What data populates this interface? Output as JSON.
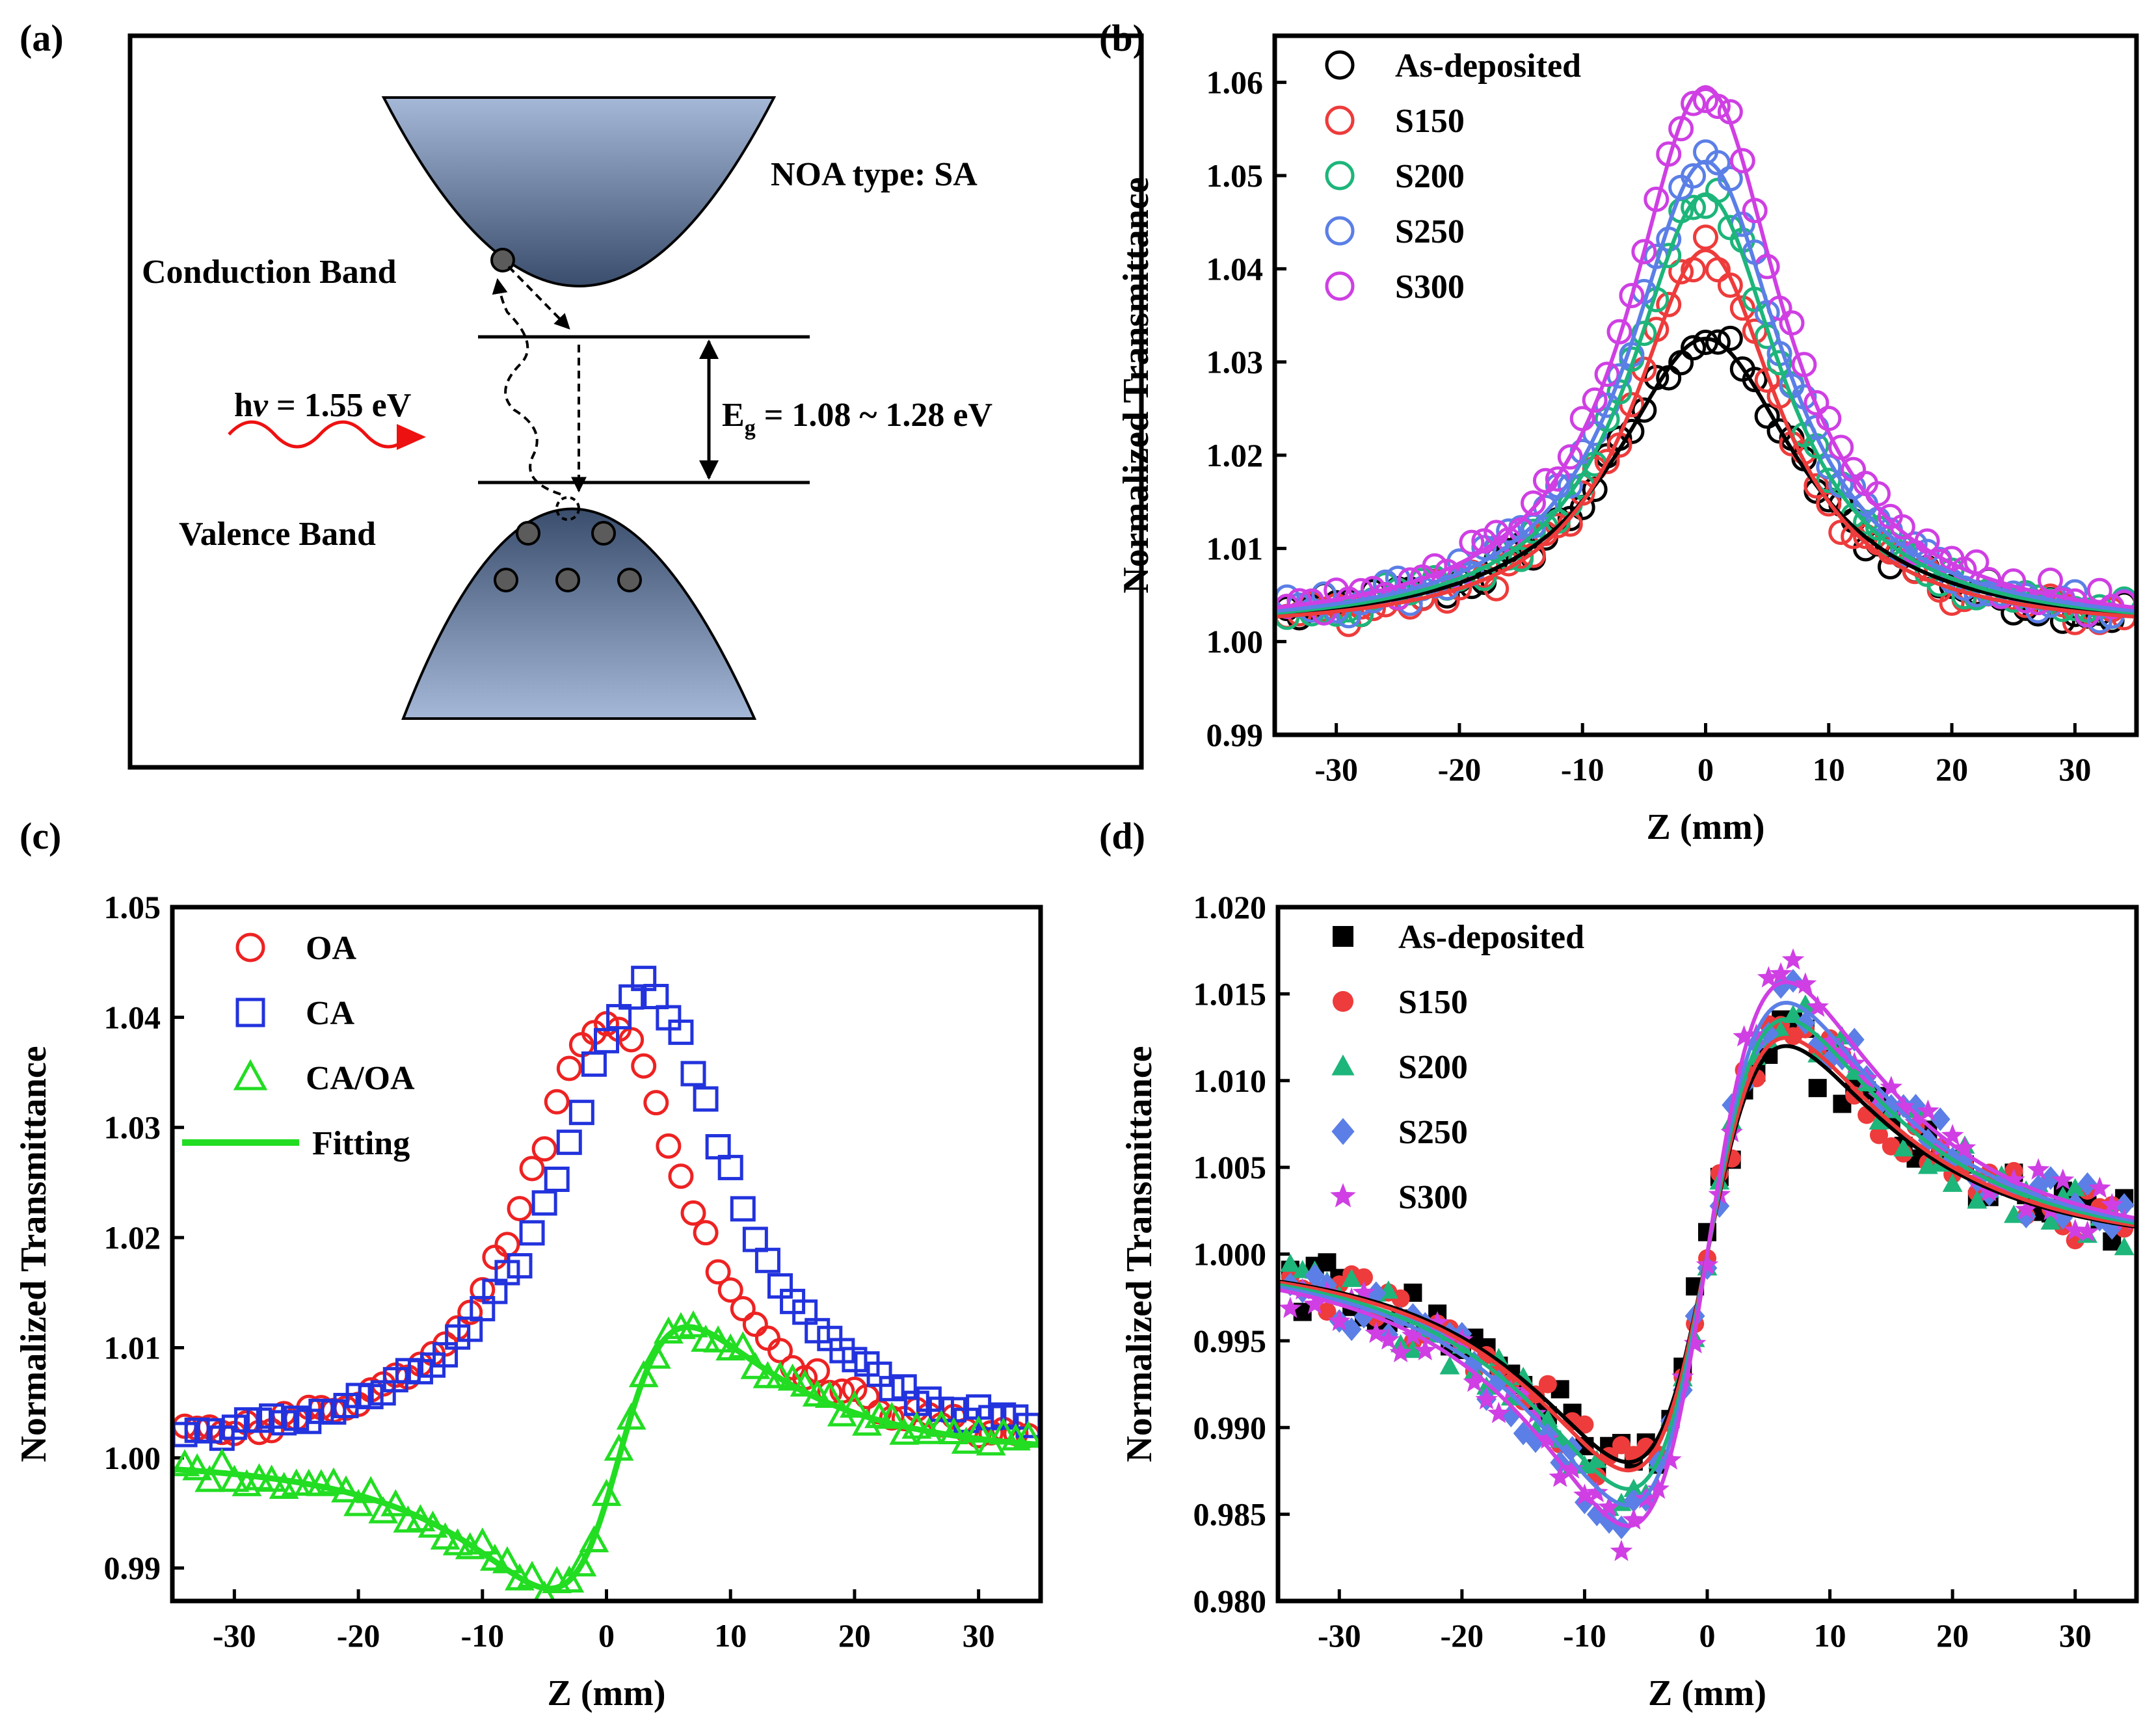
{
  "panel_labels": {
    "a": "(a)",
    "b": "(b)",
    "c": "(c)",
    "d": "(d)"
  },
  "diagram": {
    "noa_type": "NOA type: SA",
    "conduction_band": "Conduction Band",
    "valence_band": "Valence Band",
    "photon_prefix": "h",
    "photon_nu": "ν",
    "photon_suffix": " = 1.55 eV",
    "eg_symbol": "E",
    "eg_sub": "g",
    "eg_value": " = 1.08 ~ 1.28 eV",
    "colors": {
      "band_dark": "#3a4d6c",
      "band_light": "#a5b8d8",
      "photon": "#ee1111"
    }
  },
  "chart_data": [
    {
      "id": "b",
      "type": "scatter",
      "title": "",
      "xlabel": "Z (mm)",
      "ylabel": "Normalized Transmittance",
      "xlim": [
        -35,
        35
      ],
      "ylim": [
        0.99,
        1.065
      ],
      "xticks": [
        -30,
        -20,
        -10,
        0,
        10,
        20,
        30
      ],
      "yticks": [
        0.99,
        1.0,
        1.01,
        1.02,
        1.03,
        1.04,
        1.05,
        1.06
      ],
      "ytick_labels": [
        "0.99",
        "1.00",
        "1.01",
        "1.02",
        "1.03",
        "1.04",
        "1.05",
        "1.06"
      ],
      "legend_position": "top-left",
      "series": [
        {
          "name": "As-deposited",
          "color": "#000000",
          "marker": "circle",
          "fit": "lorentz",
          "peak": 0.0315,
          "w": 9,
          "base": 0.001
        },
        {
          "name": "S150",
          "color": "#ee3b3b",
          "marker": "circle",
          "fit": "lorentz",
          "peak": 0.041,
          "w": 7.2,
          "base": 0.001
        },
        {
          "name": "S200",
          "color": "#1db57a",
          "marker": "circle",
          "fit": "lorentz",
          "peak": 0.047,
          "w": 7.5,
          "base": 0.001
        },
        {
          "name": "S250",
          "color": "#5b7fe6",
          "marker": "circle",
          "fit": "lorentz",
          "peak": 0.0505,
          "w": 7.6,
          "base": 0.001
        },
        {
          "name": "S300",
          "color": "#cf3fe3",
          "marker": "circle",
          "fit": "lorentz",
          "peak": 0.0585,
          "w": 7.6,
          "base": 0.001
        }
      ]
    },
    {
      "id": "c",
      "type": "scatter",
      "title": "",
      "xlabel": "Z (mm)",
      "ylabel": "Normalized Transmittance",
      "xlim": [
        -35,
        35
      ],
      "ylim": [
        0.987,
        1.05
      ],
      "xticks": [
        -30,
        -20,
        -10,
        0,
        10,
        20,
        30
      ],
      "yticks": [
        0.99,
        1.0,
        1.01,
        1.02,
        1.03,
        1.04,
        1.05
      ],
      "ytick_labels": [
        "0.99",
        "1.00",
        "1.01",
        "1.02",
        "1.03",
        "1.04",
        "1.05"
      ],
      "legend_position": "top-left",
      "series": [
        {
          "name": "OA",
          "color": "#ee2222",
          "marker": "circle",
          "fit": "none",
          "shape": "lorentz",
          "peak": 0.04,
          "center": 0,
          "w": 8,
          "base": 0.0
        },
        {
          "name": "CA",
          "color": "#2233dd",
          "marker": "square",
          "fit": "none",
          "shape": "lorentz",
          "peak": 0.043,
          "center": 3,
          "w": 8.5,
          "base": 0.0
        },
        {
          "name": "CA/OA",
          "color": "#22dd22",
          "marker": "triangle",
          "fit": "none",
          "shape": "dispersion",
          "amp": 0.01,
          "center": 1,
          "w": 6.5,
          "base": 1.0
        },
        {
          "name": "Fitting",
          "color": "#22dd22",
          "marker": "line",
          "fit": "dispersion",
          "amp": 0.01,
          "center": 1,
          "w": 6.5,
          "base": 1.0
        }
      ]
    },
    {
      "id": "d",
      "type": "scatter",
      "title": "",
      "xlabel": "Z (mm)",
      "ylabel": "Normalized Transmittance",
      "xlim": [
        -35,
        35
      ],
      "ylim": [
        0.98,
        1.02
      ],
      "xticks": [
        -30,
        -20,
        -10,
        0,
        10,
        20,
        30
      ],
      "yticks": [
        0.98,
        0.985,
        0.99,
        0.995,
        1.0,
        1.005,
        1.01,
        1.015,
        1.02
      ],
      "ytick_labels": [
        "0.980",
        "0.985",
        "0.990",
        "0.995",
        "1.000",
        "1.005",
        "1.010",
        "1.015",
        "1.020"
      ],
      "legend_position": "top-left",
      "series": [
        {
          "name": "As-deposited",
          "color": "#000000",
          "marker": "filled-square",
          "fit": "dispersion",
          "amp": 0.0101,
          "center": 0,
          "w": 7.5,
          "base": 1.0
        },
        {
          "name": "S150",
          "color": "#ee3b3b",
          "marker": "filled-circle",
          "fit": "dispersion",
          "amp": 0.0105,
          "center": 0,
          "w": 7.5,
          "base": 1.0
        },
        {
          "name": "S200",
          "color": "#1db57a",
          "marker": "filled-triangle",
          "fit": "dispersion",
          "amp": 0.0114,
          "center": 0,
          "w": 7.5,
          "base": 1.0
        },
        {
          "name": "S250",
          "color": "#5b7fe6",
          "marker": "filled-diamond",
          "fit": "dispersion",
          "amp": 0.0122,
          "center": 0,
          "w": 7.5,
          "base": 1.0
        },
        {
          "name": "S300",
          "color": "#cf3fe3",
          "marker": "filled-star",
          "fit": "dispersion",
          "amp": 0.0132,
          "center": 0,
          "w": 7.5,
          "base": 1.0
        }
      ]
    }
  ]
}
